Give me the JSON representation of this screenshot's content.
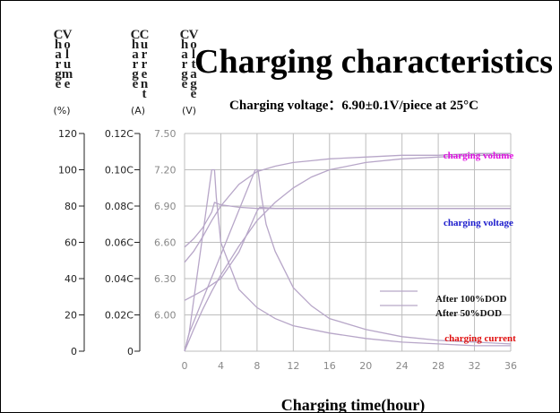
{
  "chart_data": {
    "type": "line",
    "title": "Charging characteristics",
    "subtitle": "Charging voltage：6.90±0.1V/piece at 25°C",
    "xlabel": "Charging time(hour)",
    "x_ticks": [
      "0",
      "4",
      "8",
      "12",
      "16",
      "20",
      "24",
      "28",
      "32",
      "36"
    ],
    "xlim": [
      0,
      36
    ],
    "grid": true,
    "y_axes": [
      {
        "id": "capacity",
        "title": "Charge Volume",
        "unit": "(%)",
        "ticks": [
          "0",
          "20",
          "40",
          "60",
          "80",
          "100",
          "120"
        ],
        "ylim": [
          0,
          120
        ]
      },
      {
        "id": "current",
        "title": "Charge Current",
        "unit": "(A)",
        "ticks": [
          "0",
          "0.02C",
          "0.04C",
          "0.06C",
          "0.08C",
          "0.10C",
          "0.12C"
        ],
        "ylim": [
          0,
          0.12
        ]
      },
      {
        "id": "voltage",
        "title": "Charge Voltage",
        "unit": "(V)",
        "ticks": [
          "6.00",
          "6.30",
          "6.60",
          "6.90",
          "7.20",
          "7.50"
        ],
        "ylim": [
          5.7,
          7.5
        ]
      }
    ],
    "annotations": [
      {
        "text": "charging volume",
        "color": "#e010e0"
      },
      {
        "text": "charging voltage",
        "color": "#1a1acc"
      },
      {
        "text": "charging current",
        "color": "#e01010"
      }
    ],
    "legend": [
      "After 100%DOD",
      "After 50%DOD"
    ],
    "series": [
      {
        "name": "charging volume After 50%DOD",
        "axis": "capacity",
        "x": [
          0,
          1,
          2,
          3,
          4,
          6,
          8,
          10,
          12,
          14,
          16,
          20,
          24,
          28,
          32,
          36
        ],
        "y": [
          49,
          55,
          63,
          72,
          80,
          92,
          99,
          102,
          104,
          105,
          106,
          107,
          108,
          108,
          109,
          109
        ]
      },
      {
        "name": "charging volume After 100%DOD",
        "axis": "capacity",
        "x": [
          0,
          1,
          2,
          3,
          4,
          6,
          8,
          10,
          12,
          14,
          16,
          20,
          24,
          28,
          32,
          36
        ],
        "y": [
          0,
          12,
          23,
          33,
          42,
          58,
          72,
          82,
          90,
          96,
          100,
          104,
          106,
          107,
          108,
          108
        ]
      },
      {
        "name": "charging voltage After 50%DOD",
        "axis": "voltage",
        "x": [
          0,
          1,
          2,
          3,
          3.3,
          4,
          6,
          8,
          10,
          12,
          16,
          20,
          24,
          28,
          32,
          36
        ],
        "y": [
          6.56,
          6.63,
          6.72,
          6.85,
          6.93,
          6.91,
          6.89,
          6.88,
          6.88,
          6.88,
          6.88,
          6.88,
          6.88,
          6.88,
          6.88,
          6.88
        ]
      },
      {
        "name": "charging voltage After 100%DOD",
        "axis": "voltage",
        "x": [
          0,
          1,
          2,
          3,
          4,
          6,
          8,
          8.3,
          10,
          12,
          16,
          20,
          24,
          28,
          32,
          36
        ],
        "y": [
          6.12,
          6.16,
          6.2,
          6.25,
          6.3,
          6.52,
          6.86,
          6.89,
          6.88,
          6.88,
          6.88,
          6.88,
          6.88,
          6.88,
          6.88,
          6.88
        ]
      },
      {
        "name": "charging current After 50%DOD",
        "axis": "current",
        "x": [
          0,
          0.5,
          3,
          3.3,
          3.5,
          4,
          6,
          8,
          10,
          12,
          16,
          20,
          24,
          28,
          32,
          36
        ],
        "y": [
          0,
          0.01,
          0.1,
          0.1,
          0.085,
          0.06,
          0.034,
          0.024,
          0.018,
          0.014,
          0.01,
          0.007,
          0.005,
          0.004,
          0.003,
          0.003
        ]
      },
      {
        "name": "charging current After 100%DOD",
        "axis": "current",
        "x": [
          0,
          0.5,
          7.8,
          8.1,
          8.5,
          9,
          10,
          12,
          14,
          16,
          20,
          24,
          28,
          32,
          36
        ],
        "y": [
          0,
          0.01,
          0.1,
          0.1,
          0.085,
          0.07,
          0.055,
          0.035,
          0.025,
          0.018,
          0.012,
          0.008,
          0.006,
          0.005,
          0.004
        ]
      }
    ]
  }
}
